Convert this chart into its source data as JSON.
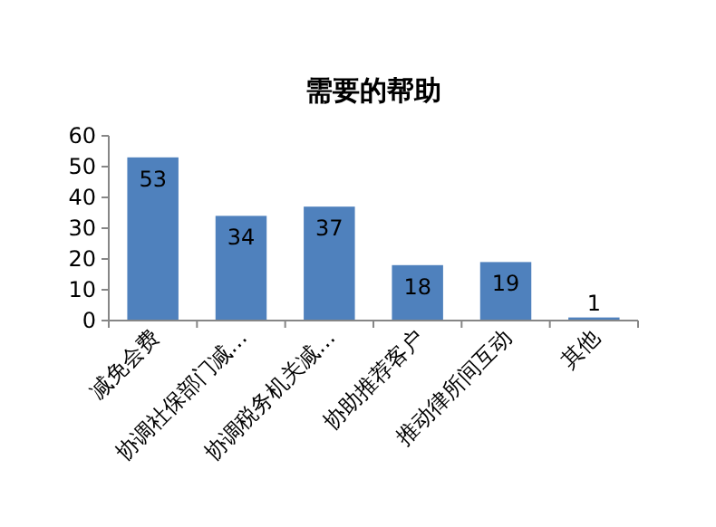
{
  "chart_data": {
    "type": "bar",
    "title": "需要的帮助",
    "categories": [
      "减免会费",
      "协调社保部门减…",
      "协调税务机关减…",
      "协助推荐客户",
      "推动律所间互动",
      "其他"
    ],
    "values": [
      53,
      34,
      37,
      18,
      19,
      1
    ],
    "color": "#4f81bd",
    "ylim": [
      0,
      60
    ],
    "yticks": [
      0,
      10,
      20,
      30,
      40,
      50,
      60
    ],
    "grid": false,
    "data_labels": true
  }
}
